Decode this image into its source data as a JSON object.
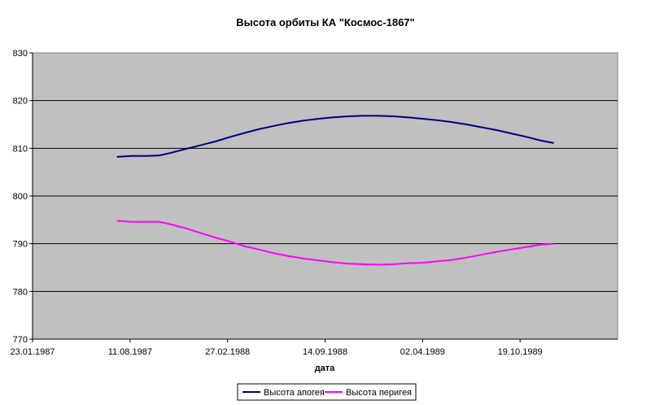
{
  "chart_data": {
    "type": "line",
    "title": "Высота орбиты КА \"Космос-1867\"",
    "xlabel": "дата",
    "ylabel": "",
    "ylim": [
      770,
      830
    ],
    "yticks": [
      770,
      780,
      790,
      800,
      810,
      820,
      830
    ],
    "xlim": [
      "1987-01-23",
      "1990-05-07"
    ],
    "xticks": [
      {
        "date": "1987-01-23",
        "label": "23.01.1987"
      },
      {
        "date": "1987-08-11",
        "label": "11.08.1987"
      },
      {
        "date": "1988-02-27",
        "label": "27.02.1988"
      },
      {
        "date": "1988-09-14",
        "label": "14.09.1988"
      },
      {
        "date": "1989-04-02",
        "label": "02.04.1989"
      },
      {
        "date": "1989-10-19",
        "label": "19.10.1989"
      }
    ],
    "grid": "horizontal",
    "legend_position": "bottom",
    "plot_background": "#c0c0c0",
    "series": [
      {
        "name": "Высота апогея",
        "color": "#000080",
        "points": [
          [
            "1987-07-15",
            808.2
          ],
          [
            "1987-08-15",
            808.4
          ],
          [
            "1987-09-15",
            808.4
          ],
          [
            "1987-10-10",
            808.5
          ],
          [
            "1987-11-01",
            809.0
          ],
          [
            "1987-12-01",
            809.8
          ],
          [
            "1988-01-01",
            810.6
          ],
          [
            "1988-02-01",
            811.4
          ],
          [
            "1988-03-01",
            812.3
          ],
          [
            "1988-04-01",
            813.2
          ],
          [
            "1988-05-01",
            814.0
          ],
          [
            "1988-06-01",
            814.7
          ],
          [
            "1988-07-01",
            815.3
          ],
          [
            "1988-08-01",
            815.8
          ],
          [
            "1988-09-01",
            816.2
          ],
          [
            "1988-10-01",
            816.5
          ],
          [
            "1988-11-01",
            816.7
          ],
          [
            "1988-12-01",
            816.8
          ],
          [
            "1989-01-01",
            816.8
          ],
          [
            "1989-02-01",
            816.7
          ],
          [
            "1989-03-01",
            816.5
          ],
          [
            "1989-04-01",
            816.2
          ],
          [
            "1989-05-01",
            815.9
          ],
          [
            "1989-06-01",
            815.5
          ],
          [
            "1989-07-01",
            815.0
          ],
          [
            "1989-08-01",
            814.4
          ],
          [
            "1989-09-01",
            813.8
          ],
          [
            "1989-10-01",
            813.1
          ],
          [
            "1989-11-01",
            812.4
          ],
          [
            "1989-12-01",
            811.6
          ],
          [
            "1989-12-27",
            811.1
          ]
        ]
      },
      {
        "name": "Высота перигея",
        "color": "#ff00ff",
        "points": [
          [
            "1987-07-15",
            794.8
          ],
          [
            "1987-08-15",
            794.6
          ],
          [
            "1987-09-15",
            794.6
          ],
          [
            "1987-10-10",
            794.6
          ],
          [
            "1987-11-01",
            794.1
          ],
          [
            "1987-12-01",
            793.3
          ],
          [
            "1988-01-01",
            792.3
          ],
          [
            "1988-02-01",
            791.3
          ],
          [
            "1988-03-01",
            790.5
          ],
          [
            "1988-04-01",
            789.5
          ],
          [
            "1988-05-01",
            788.8
          ],
          [
            "1988-06-01",
            788.0
          ],
          [
            "1988-07-01",
            787.4
          ],
          [
            "1988-08-01",
            786.9
          ],
          [
            "1988-09-01",
            786.5
          ],
          [
            "1988-10-01",
            786.1
          ],
          [
            "1988-11-01",
            785.8
          ],
          [
            "1988-12-01",
            785.7
          ],
          [
            "1989-01-01",
            785.6
          ],
          [
            "1989-02-01",
            785.7
          ],
          [
            "1989-03-01",
            785.9
          ],
          [
            "1989-04-01",
            786.0
          ],
          [
            "1989-05-01",
            786.3
          ],
          [
            "1989-06-01",
            786.6
          ],
          [
            "1989-07-01",
            787.1
          ],
          [
            "1989-08-01",
            787.7
          ],
          [
            "1989-09-01",
            788.3
          ],
          [
            "1989-10-01",
            788.8
          ],
          [
            "1989-11-01",
            789.3
          ],
          [
            "1989-12-01",
            789.8
          ],
          [
            "1989-12-27",
            790.0
          ]
        ]
      }
    ]
  }
}
